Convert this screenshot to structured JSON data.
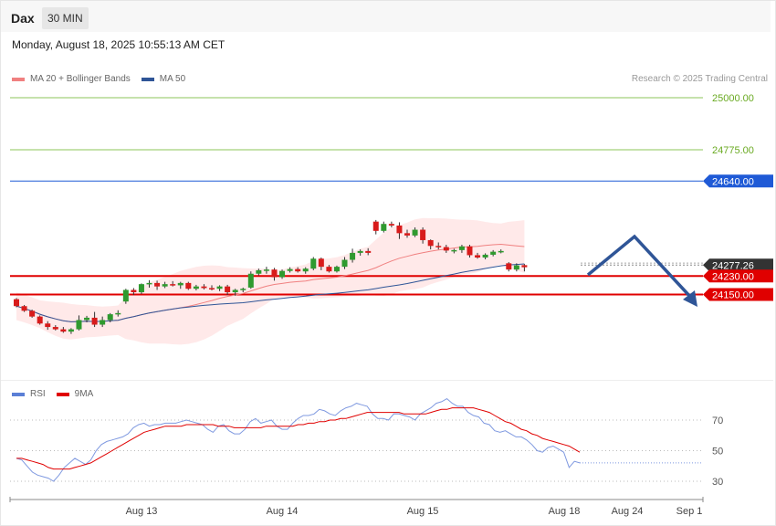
{
  "header": {
    "symbol": "Dax",
    "interval": "30 MIN"
  },
  "datetime": "Monday, August 18, 2025 10:55:13 AM CET",
  "legend": {
    "main": [
      {
        "label": "MA 20 + Bollinger Bands",
        "color": "#f08080"
      },
      {
        "label": "MA 50",
        "color": "#2f5597"
      }
    ],
    "rsi": [
      {
        "label": "RSI",
        "color": "#5b7fd6"
      },
      {
        "label": "9MA",
        "color": "#e00000"
      }
    ]
  },
  "credit": "Research © 2025 Trading Central",
  "chart_data": {
    "type": "candlestick",
    "y_range": [
      24040,
      25020
    ],
    "levels": [
      {
        "value": 25000,
        "label": "25000.00",
        "color": "#8dc55a",
        "kind": "target"
      },
      {
        "value": 24775,
        "label": "24775.00",
        "color": "#8dc55a",
        "kind": "target"
      },
      {
        "value": 24640,
        "label": "24640.00",
        "color": "#1f5ad6",
        "kind": "resistance"
      },
      {
        "value": 24277.26,
        "label": "24277.26",
        "color": "#333333",
        "kind": "last"
      },
      {
        "value": 24230,
        "label": "24230.00",
        "color": "#e00000",
        "kind": "pivot"
      },
      {
        "value": 24150,
        "label": "24150.00",
        "color": "#e00000",
        "kind": "support"
      }
    ],
    "x_ticks": [
      "Aug 13",
      "Aug 14",
      "Aug 15",
      "Aug 18",
      "Aug 24",
      "Sep 1"
    ],
    "candles": [
      [
        24130,
        24135,
        24095,
        24100
      ],
      [
        24100,
        24105,
        24075,
        24080
      ],
      [
        24080,
        24085,
        24050,
        24055
      ],
      [
        24055,
        24060,
        24020,
        24025
      ],
      [
        24025,
        24035,
        23998,
        24010
      ],
      [
        24010,
        24018,
        23995,
        24000
      ],
      [
        24000,
        24010,
        23985,
        23990
      ],
      [
        23990,
        24005,
        23980,
        24000
      ],
      [
        24000,
        24060,
        23995,
        24040
      ],
      [
        24040,
        24058,
        24030,
        24050
      ],
      [
        24050,
        24075,
        24010,
        24020
      ],
      [
        24020,
        24055,
        24010,
        24040
      ],
      [
        24040,
        24070,
        24030,
        24065
      ],
      [
        24065,
        24082,
        24055,
        24070
      ],
      [
        24120,
        24175,
        24110,
        24170
      ],
      [
        24170,
        24178,
        24148,
        24160
      ],
      [
        24160,
        24198,
        24152,
        24195
      ],
      [
        24195,
        24212,
        24180,
        24200
      ],
      [
        24200,
        24210,
        24170,
        24185
      ],
      [
        24185,
        24205,
        24178,
        24195
      ],
      [
        24195,
        24208,
        24185,
        24190
      ],
      [
        24190,
        24205,
        24175,
        24200
      ],
      [
        24200,
        24205,
        24170,
        24175
      ],
      [
        24175,
        24192,
        24168,
        24185
      ],
      [
        24185,
        24195,
        24172,
        24178
      ],
      [
        24178,
        24190,
        24168,
        24175
      ],
      [
        24175,
        24190,
        24165,
        24185
      ],
      [
        24185,
        24192,
        24148,
        24160
      ],
      [
        24160,
        24175,
        24145,
        24170
      ],
      [
        24170,
        24180,
        24160,
        24175
      ],
      [
        24180,
        24250,
        24175,
        24240
      ],
      [
        24240,
        24262,
        24232,
        24255
      ],
      [
        24255,
        24270,
        24240,
        24258
      ],
      [
        24258,
        24265,
        24210,
        24225
      ],
      [
        24225,
        24258,
        24218,
        24252
      ],
      [
        24252,
        24268,
        24245,
        24260
      ],
      [
        24260,
        24268,
        24245,
        24250
      ],
      [
        24250,
        24268,
        24240,
        24262
      ],
      [
        24262,
        24312,
        24255,
        24305
      ],
      [
        24305,
        24310,
        24255,
        24270
      ],
      [
        24270,
        24278,
        24245,
        24250
      ],
      [
        24250,
        24275,
        24245,
        24270
      ],
      [
        24270,
        24312,
        24260,
        24300
      ],
      [
        24300,
        24348,
        24288,
        24330
      ],
      [
        24330,
        24345,
        24318,
        24338
      ],
      [
        24338,
        24350,
        24320,
        24330
      ],
      [
        24465,
        24472,
        24410,
        24425
      ],
      [
        24425,
        24465,
        24418,
        24455
      ],
      [
        24455,
        24465,
        24440,
        24448
      ],
      [
        24448,
        24462,
        24390,
        24415
      ],
      [
        24415,
        24430,
        24395,
        24405
      ],
      [
        24405,
        24440,
        24398,
        24430
      ],
      [
        24430,
        24440,
        24370,
        24385
      ],
      [
        24385,
        24388,
        24345,
        24360
      ],
      [
        24360,
        24375,
        24345,
        24355
      ],
      [
        24355,
        24365,
        24330,
        24340
      ],
      [
        24340,
        24348,
        24328,
        24342
      ],
      [
        24342,
        24365,
        24330,
        24358
      ],
      [
        24358,
        24365,
        24310,
        24320
      ],
      [
        24320,
        24330,
        24305,
        24310
      ],
      [
        24310,
        24328,
        24302,
        24322
      ],
      [
        24322,
        24342,
        24315,
        24335
      ],
      [
        24335,
        24345,
        24328,
        24338
      ],
      [
        24285,
        24290,
        24250,
        24258
      ],
      [
        24258,
        24285,
        24250,
        24276
      ],
      [
        24277,
        24282,
        24250,
        24268
      ]
    ],
    "rsi": {
      "y_ticks": [
        70,
        50,
        30
      ],
      "rsi": [
        45,
        44,
        40,
        36,
        34,
        33,
        32,
        30,
        34,
        39,
        42,
        45,
        43,
        41,
        44,
        50,
        54,
        56,
        57,
        58,
        59,
        61,
        65,
        67,
        68,
        66,
        67,
        67,
        68,
        68,
        68,
        69,
        70,
        69,
        68,
        67,
        64,
        62,
        66,
        67,
        63,
        61,
        61,
        64,
        69,
        71,
        68,
        69,
        70,
        66,
        64,
        64,
        68,
        71,
        73,
        73,
        74,
        77,
        76,
        74,
        73,
        76,
        78,
        79,
        81,
        80,
        79,
        74,
        71,
        71,
        70,
        74,
        74,
        73,
        72,
        70,
        74,
        76,
        78,
        81,
        82,
        84,
        81,
        79,
        79,
        75,
        73,
        72,
        68,
        67,
        63,
        62,
        63,
        61,
        59,
        59,
        57,
        54,
        50,
        49,
        52,
        53,
        51,
        49,
        39,
        43,
        42
      ],
      "ma9": [
        45,
        45,
        44,
        43,
        42,
        41,
        39,
        38,
        38,
        38,
        38,
        39,
        40,
        41,
        42,
        44,
        46,
        48,
        50,
        52,
        54,
        56,
        58,
        60,
        62,
        63,
        64,
        65,
        66,
        66,
        66,
        66,
        67,
        67,
        67,
        67,
        67,
        67,
        66,
        66,
        66,
        65,
        65,
        65,
        65,
        65,
        65,
        66,
        66,
        66,
        66,
        66,
        66,
        67,
        67,
        68,
        68,
        69,
        69,
        70,
        70,
        71,
        71,
        72,
        73,
        74,
        75,
        75,
        75,
        75,
        75,
        75,
        75,
        74,
        74,
        74,
        74,
        74,
        75,
        76,
        77,
        77,
        78,
        78,
        78,
        78,
        78,
        77,
        76,
        75,
        73,
        71,
        69,
        68,
        66,
        64,
        63,
        61,
        60,
        58,
        57,
        56,
        55,
        54,
        53,
        51,
        49
      ]
    }
  }
}
